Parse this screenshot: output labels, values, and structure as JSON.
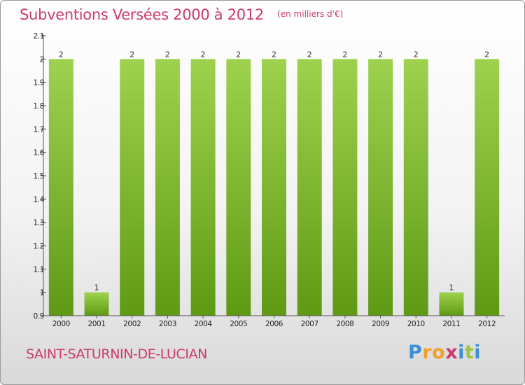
{
  "header": {
    "title": "Subventions Versées 2000 à 2012",
    "unit": "(en milliers d'€)"
  },
  "footer": {
    "place": "SAINT-SATURNIN-DE-LUCIAN",
    "logo_letters": [
      "P",
      "r",
      "o",
      "x",
      "i",
      "t",
      "i"
    ],
    "logo_colors": [
      "#3b8fd8",
      "#f0a02a",
      "#f0a02a",
      "#cc3a6c",
      "#3b8fd8",
      "#9ac83c",
      "#3b8fd8"
    ]
  },
  "chart_data": {
    "type": "bar",
    "categories": [
      "2000",
      "2001",
      "2002",
      "2003",
      "2004",
      "2005",
      "2006",
      "2007",
      "2008",
      "2009",
      "2010",
      "2011",
      "2012"
    ],
    "values": [
      2,
      1,
      2,
      2,
      2,
      2,
      2,
      2,
      2,
      2,
      2,
      1,
      2
    ],
    "data_labels": [
      "2",
      "1",
      "2",
      "2",
      "2",
      "2",
      "2",
      "2",
      "2",
      "2",
      "2",
      "1",
      "2"
    ],
    "ylim": [
      0.9,
      2.1
    ],
    "yticks": [
      "0.9",
      "1",
      "1.1",
      "1.2",
      "1.3",
      "1.4",
      "1.5",
      "1.6",
      "1.7",
      "1.8",
      "1.9",
      "2",
      "2.1"
    ],
    "title": "Subventions Versées 2000 à 2012",
    "xlabel": "",
    "ylabel": "",
    "grid": false,
    "colors": {
      "bar_top": "#9ed24e",
      "bar_bottom": "#5f9a14",
      "axis": "#555555"
    }
  }
}
